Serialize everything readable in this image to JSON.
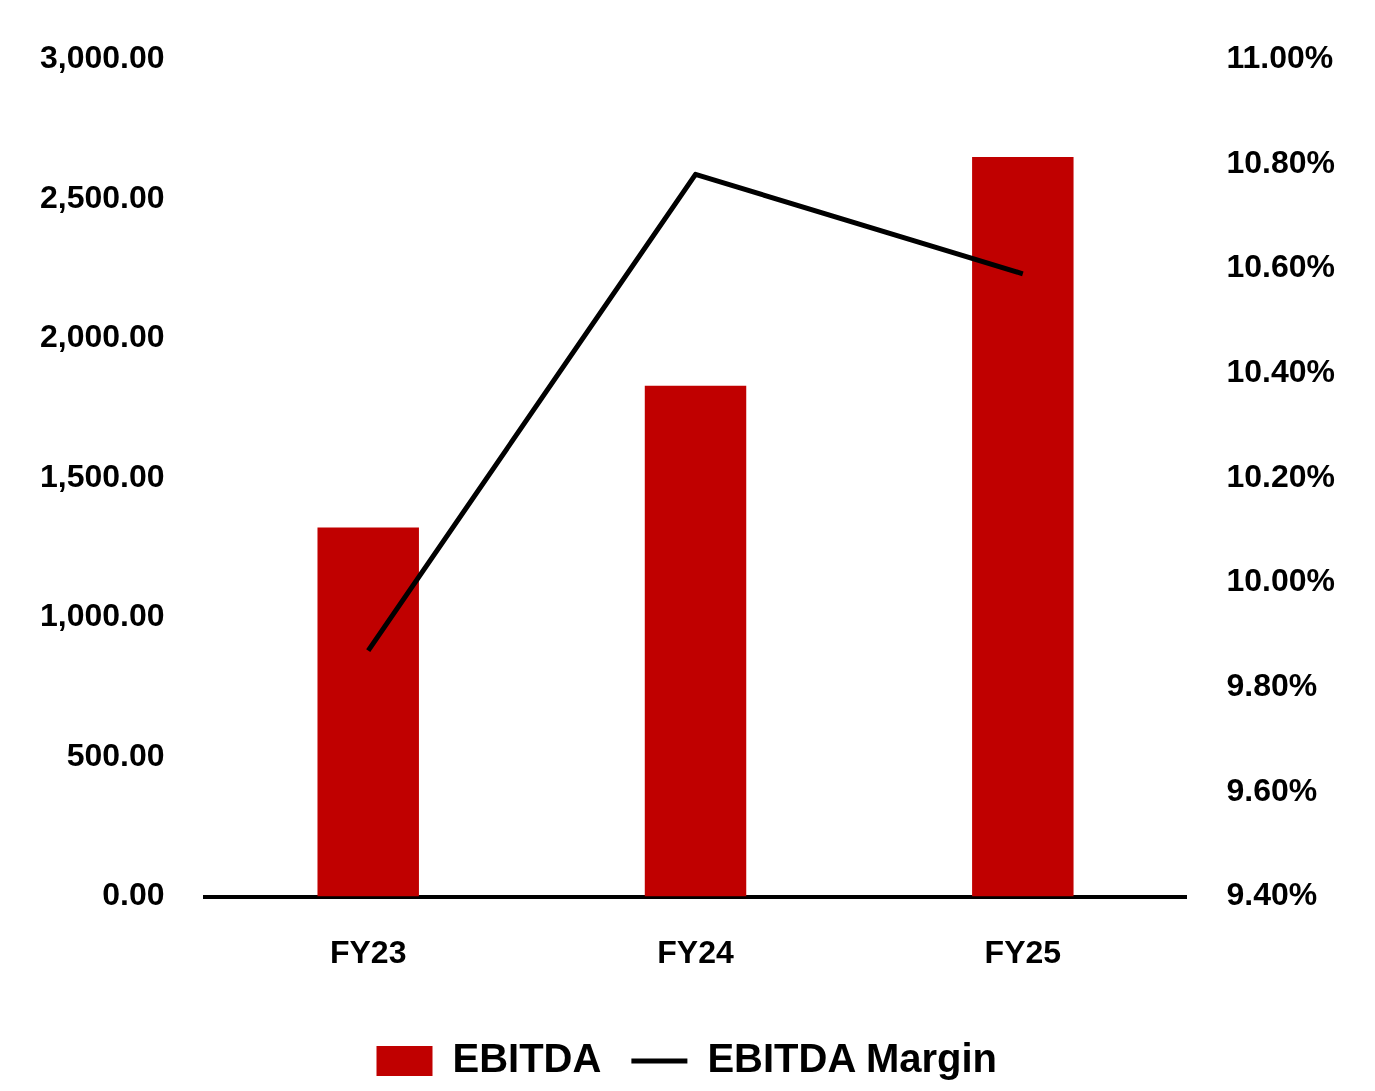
{
  "chart_data": {
    "type": "bar",
    "categories": [
      "FY23",
      "FY24",
      "FY25"
    ],
    "series": [
      {
        "name": "EBITDA",
        "color": "#c00000",
        "values": [
          1322,
          1830,
          2650
        ]
      },
      {
        "name": "EBITDA Margin",
        "type": "line",
        "axis": "y2",
        "color": "#000000",
        "values": [
          9.87,
          10.78,
          10.59
        ]
      }
    ],
    "ylim": [
      0,
      3000
    ],
    "yticks": [
      {
        "value": 0,
        "label": "0.00"
      },
      {
        "value": 500,
        "label": "500.00"
      },
      {
        "value": 1000,
        "label": "1,000.00"
      },
      {
        "value": 1500,
        "label": "1,500.00"
      },
      {
        "value": 2000,
        "label": "2,000.00"
      },
      {
        "value": 2500,
        "label": "2,500.00"
      },
      {
        "value": 3000,
        "label": "3,000.00"
      }
    ],
    "y2lim": [
      9.4,
      11
    ],
    "y2ticks": [
      {
        "value": 9.4,
        "label": "9.40%"
      },
      {
        "value": 9.6,
        "label": "9.60%"
      },
      {
        "value": 9.8,
        "label": "9.80%"
      },
      {
        "value": 10,
        "label": "10.00%"
      },
      {
        "value": 10.2,
        "label": "10.20%"
      },
      {
        "value": 10.4,
        "label": "10.40%"
      },
      {
        "value": 10.6,
        "label": "10.60%"
      },
      {
        "value": 10.8,
        "label": "10.80%"
      },
      {
        "value": 11,
        "label": "11.00%"
      }
    ],
    "grid": false,
    "legend": "bottom",
    "marker": "none",
    "line_style": "solid"
  }
}
